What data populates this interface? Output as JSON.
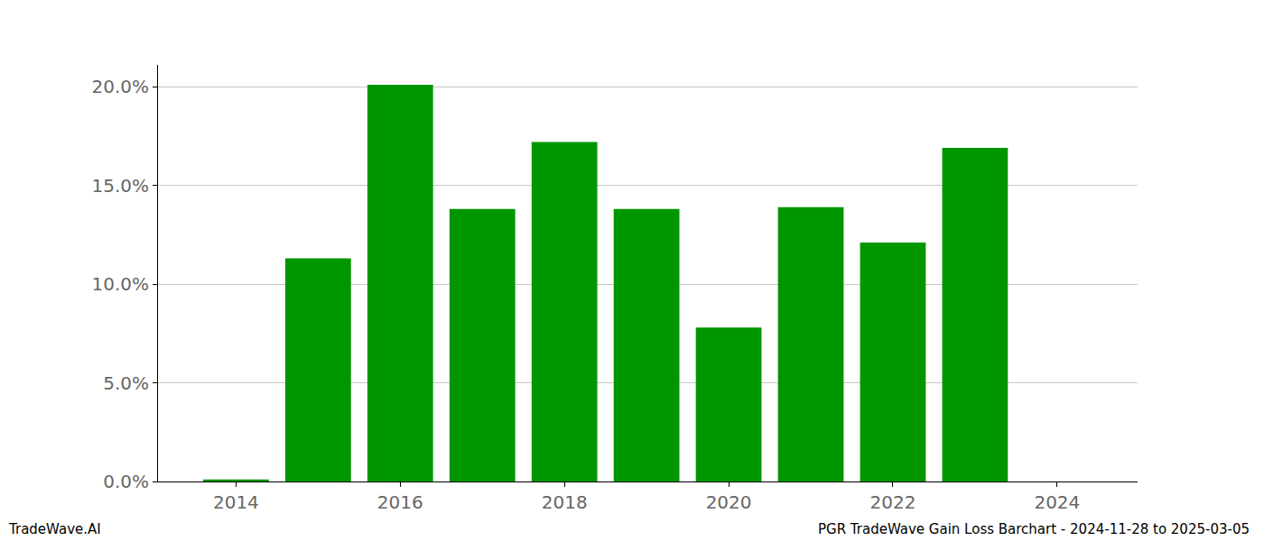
{
  "chart_data": {
    "type": "bar",
    "x": [
      2014,
      2015,
      2016,
      2017,
      2018,
      2019,
      2020,
      2021,
      2022,
      2023
    ],
    "values": [
      0.1,
      11.3,
      20.1,
      13.8,
      17.2,
      13.8,
      7.8,
      13.9,
      12.1,
      16.9
    ],
    "color": "#009600",
    "xlim": [
      2013.05,
      2024.98
    ],
    "xticks": [
      2014,
      2016,
      2018,
      2020,
      2022,
      2024
    ],
    "ylim": [
      0,
      21.1
    ],
    "yticks": [
      {
        "value": 0,
        "label": "0.0%"
      },
      {
        "value": 5,
        "label": "5.0%"
      },
      {
        "value": 10,
        "label": "10.0%"
      },
      {
        "value": 15,
        "label": "15.0%"
      },
      {
        "value": 20,
        "label": "20.0%"
      }
    ],
    "grid": true,
    "annotations": [
      "TradeWave.AI",
      "PGR TradeWave Gain Loss Barchart - 2024-11-28 to 2025-03-05"
    ]
  }
}
